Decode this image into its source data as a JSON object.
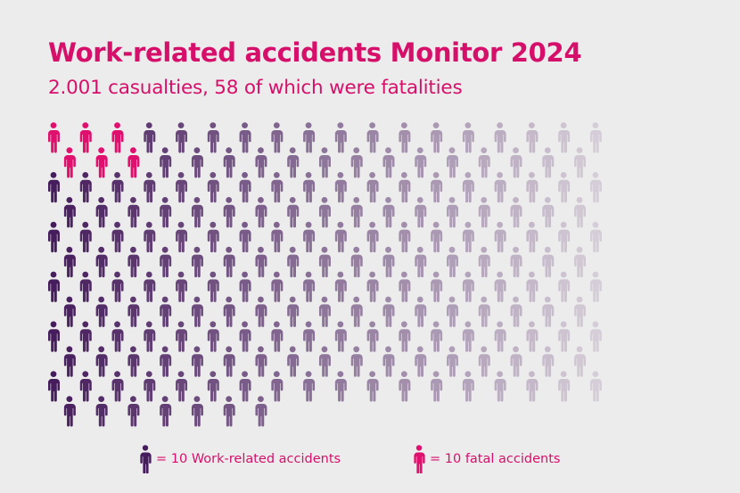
{
  "title": "Work-related accidents Monitor 2024",
  "subtitle": "2.001 casualties, 58 of which were fatalities",
  "colors": {
    "text": "#d6106a",
    "fatal": "#e0106e",
    "accident_dark": "#461d5c",
    "accident_light": "#d5cdd8",
    "background": "#ececec"
  },
  "legend": [
    {
      "icon": "person-icon",
      "color": "#461d5c",
      "label": "= 10 Work-related accidents"
    },
    {
      "icon": "person-icon",
      "color": "#e0106e",
      "label": "= 10 fatal accidents"
    }
  ],
  "chart_data": {
    "type": "pictogram",
    "title": "Work-related accidents Monitor 2024",
    "subtitle": "2.001 casualties, 58 of which were fatalities",
    "casualties": 2001,
    "fatalities": 58,
    "units_per_icon": 10,
    "total_icons": 200,
    "fatal_icons": 6,
    "series": [
      {
        "name": "fatal accidents",
        "icons": 6,
        "color": "#e0106e"
      },
      {
        "name": "Work-related accidents",
        "icons": 194,
        "color_gradient": [
          "#461d5c",
          "#d5cdd8"
        ]
      }
    ],
    "legend_position": "bottom"
  }
}
